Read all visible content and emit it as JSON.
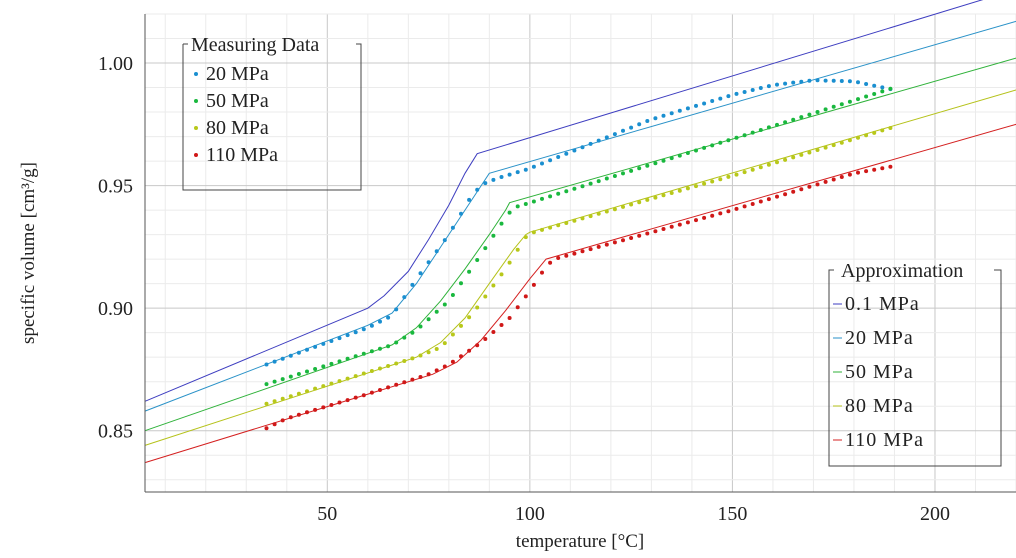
{
  "chart_data": {
    "type": "scatter",
    "xlabel": "temperature [°C]",
    "ylabel": "specific volume [cm³/g]",
    "xlim": [
      5,
      220
    ],
    "ylim": [
      0.825,
      1.02
    ],
    "x_ticks": [
      50,
      100,
      150,
      200
    ],
    "x_tick_labels": [
      "50",
      "100",
      "150",
      "200"
    ],
    "y_ticks": [
      0.85,
      0.9,
      0.95,
      1.0
    ],
    "y_tick_labels": [
      "0.85",
      "0.90",
      "0.95",
      "1.00"
    ],
    "grid": true,
    "measuring_legend": {
      "title": "Measuring Data",
      "position": "top-left",
      "entries": [
        "20 MPa",
        "50 MPa",
        "80 MPa",
        "110 MPa"
      ]
    },
    "approximation_legend": {
      "title": "Approximation",
      "position": "bottom-right",
      "entries": [
        "0.1 MPa",
        "20 MPa",
        "50 MPa",
        "80 MPa",
        "110 MPa"
      ]
    },
    "measured_series": [
      {
        "name": "20 MPa",
        "color": "#1a8fd0",
        "x_start": 35,
        "x_end": 190,
        "step": 2,
        "points": [
          [
            35,
            0.877
          ],
          [
            60,
            0.892
          ],
          [
            66,
            0.897
          ],
          [
            72,
            0.912
          ],
          [
            80,
            0.93
          ],
          [
            86,
            0.947
          ],
          [
            89,
            0.951
          ],
          [
            92,
            0.953
          ],
          [
            100,
            0.957
          ],
          [
            130,
            0.977
          ],
          [
            150,
            0.987
          ],
          [
            160,
            0.991
          ],
          [
            170,
            0.993
          ],
          [
            180,
            0.9925
          ],
          [
            190,
            0.989
          ]
        ]
      },
      {
        "name": "50 MPa",
        "color": "#19b83e",
        "x_start": 35,
        "x_end": 190,
        "step": 2,
        "points": [
          [
            35,
            0.869
          ],
          [
            66,
            0.885
          ],
          [
            72,
            0.891
          ],
          [
            80,
            0.903
          ],
          [
            88,
            0.922
          ],
          [
            94,
            0.937
          ],
          [
            96,
            0.941
          ],
          [
            100,
            0.943
          ],
          [
            150,
            0.969
          ],
          [
            190,
            0.99
          ]
        ]
      },
      {
        "name": "80 MPa",
        "color": "#b8c81a",
        "x_start": 35,
        "x_end": 190,
        "step": 2,
        "points": [
          [
            35,
            0.861
          ],
          [
            72,
            0.88
          ],
          [
            78,
            0.884
          ],
          [
            86,
            0.898
          ],
          [
            94,
            0.916
          ],
          [
            99,
            0.929
          ],
          [
            101,
            0.931
          ],
          [
            150,
            0.954
          ],
          [
            190,
            0.974
          ]
        ]
      },
      {
        "name": "110 MPa",
        "color": "#d01818",
        "x_start": 35,
        "x_end": 190,
        "step": 2,
        "points": [
          [
            35,
            0.851
          ],
          [
            40,
            0.855
          ],
          [
            60,
            0.865
          ],
          [
            75,
            0.873
          ],
          [
            80,
            0.877
          ],
          [
            88,
            0.886
          ],
          [
            95,
            0.896
          ],
          [
            100,
            0.907
          ],
          [
            104,
            0.917
          ],
          [
            106,
            0.92
          ],
          [
            150,
            0.94
          ],
          [
            180,
            0.955
          ],
          [
            190,
            0.958
          ]
        ]
      }
    ],
    "approximation_series": [
      {
        "name": "0.1 MPa",
        "color": "#3e3ec0",
        "points": [
          [
            5,
            0.862
          ],
          [
            60,
            0.9
          ],
          [
            64,
            0.905
          ],
          [
            70,
            0.915
          ],
          [
            75,
            0.928
          ],
          [
            80,
            0.942
          ],
          [
            84,
            0.955
          ],
          [
            87,
            0.963
          ],
          [
            220,
            1.03
          ]
        ]
      },
      {
        "name": "20 MPa",
        "color": "#2a92c8",
        "points": [
          [
            5,
            0.858
          ],
          [
            60,
            0.893
          ],
          [
            66,
            0.898
          ],
          [
            72,
            0.91
          ],
          [
            78,
            0.925
          ],
          [
            84,
            0.94
          ],
          [
            88,
            0.95
          ],
          [
            90,
            0.955
          ],
          [
            220,
            1.017
          ]
        ]
      },
      {
        "name": "50 MPa",
        "color": "#2fb23a",
        "points": [
          [
            5,
            0.85
          ],
          [
            66,
            0.885
          ],
          [
            72,
            0.892
          ],
          [
            78,
            0.903
          ],
          [
            84,
            0.916
          ],
          [
            90,
            0.93
          ],
          [
            94,
            0.94
          ],
          [
            95,
            0.943
          ],
          [
            220,
            1.002
          ]
        ]
      },
      {
        "name": "80 MPa",
        "color": "#b5c21a",
        "points": [
          [
            5,
            0.844
          ],
          [
            72,
            0.88
          ],
          [
            78,
            0.886
          ],
          [
            84,
            0.896
          ],
          [
            90,
            0.91
          ],
          [
            96,
            0.924
          ],
          [
            99,
            0.93
          ],
          [
            100,
            0.931
          ],
          [
            220,
            0.989
          ]
        ]
      },
      {
        "name": "110 MPa",
        "color": "#d42020",
        "points": [
          [
            5,
            0.837
          ],
          [
            76,
            0.873
          ],
          [
            82,
            0.878
          ],
          [
            88,
            0.887
          ],
          [
            94,
            0.899
          ],
          [
            100,
            0.912
          ],
          [
            104,
            0.92
          ],
          [
            220,
            0.975
          ]
        ]
      }
    ]
  }
}
